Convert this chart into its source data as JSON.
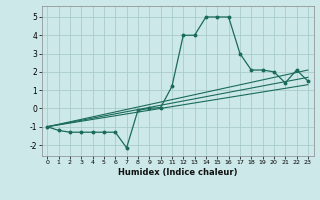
{
  "xlabel": "Humidex (Indice chaleur)",
  "background_color": "#cce8e8",
  "grid_color": "#aacccc",
  "line_color": "#1a6b5a",
  "xlim": [
    -0.5,
    23.5
  ],
  "ylim": [
    -2.6,
    5.6
  ],
  "xticks": [
    0,
    1,
    2,
    3,
    4,
    5,
    6,
    7,
    8,
    9,
    10,
    11,
    12,
    13,
    14,
    15,
    16,
    17,
    18,
    19,
    20,
    21,
    22,
    23
  ],
  "yticks": [
    -2,
    -1,
    0,
    1,
    2,
    3,
    4,
    5
  ],
  "main_x": [
    0,
    1,
    2,
    3,
    4,
    5,
    6,
    7,
    8,
    9,
    10,
    11,
    12,
    13,
    14,
    15,
    16,
    17,
    18,
    19,
    20,
    21,
    22,
    23
  ],
  "main_y": [
    -1.0,
    -1.2,
    -1.3,
    -1.3,
    -1.3,
    -1.3,
    -1.3,
    -2.15,
    -0.1,
    0.0,
    0.05,
    1.2,
    4.0,
    4.0,
    5.0,
    5.0,
    5.0,
    3.0,
    2.1,
    2.1,
    2.0,
    1.4,
    2.1,
    1.5
  ],
  "line1_x": [
    0,
    23
  ],
  "line1_y": [
    -1.0,
    2.1
  ],
  "line2_x": [
    0,
    23
  ],
  "line2_y": [
    -1.0,
    1.7
  ],
  "line3_x": [
    0,
    23
  ],
  "line3_y": [
    -1.0,
    1.3
  ]
}
